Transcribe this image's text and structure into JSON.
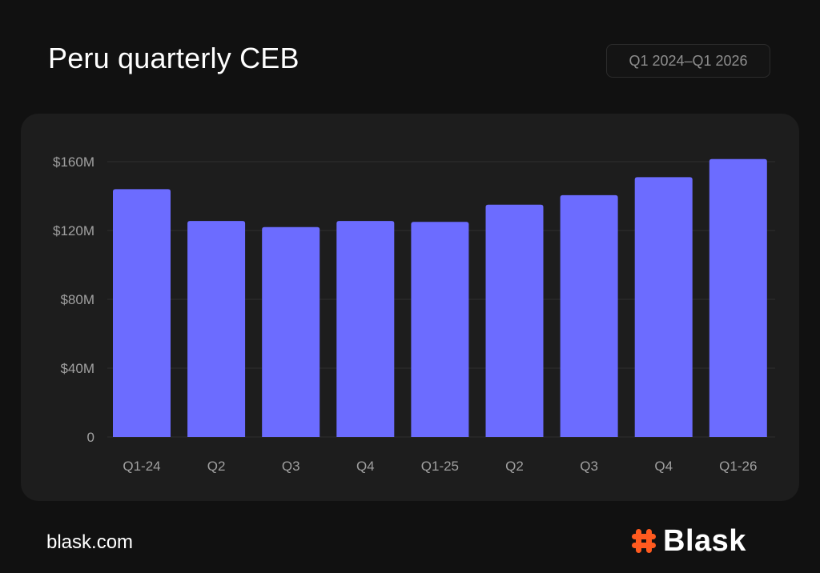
{
  "header": {
    "title": "Peru quarterly CEB",
    "period": "Q1 2024–Q1 2026"
  },
  "footer": {
    "url": "blask.com",
    "brand": "Blask",
    "brand_icon": "hash-icon"
  },
  "colors": {
    "background": "#111111",
    "card": "#1d1d1d",
    "bar": "#6c6cff",
    "brand_accent": "#ff5a1f",
    "tick_text": "#a0a0a0"
  },
  "chart_data": {
    "type": "bar",
    "categories": [
      "Q1-24",
      "Q2",
      "Q3",
      "Q4",
      "Q1-25",
      "Q2",
      "Q3",
      "Q4",
      "Q1-26"
    ],
    "values": [
      144,
      125.5,
      122,
      125.5,
      125,
      135,
      140.5,
      151,
      161.5
    ],
    "unit": "$M",
    "ylim": [
      0,
      160
    ],
    "yticks": [
      0,
      40,
      80,
      120,
      160
    ],
    "ytick_labels": [
      "0",
      "$40M",
      "$80M",
      "$120M",
      "$160M"
    ],
    "grid": true,
    "legend": "none"
  }
}
